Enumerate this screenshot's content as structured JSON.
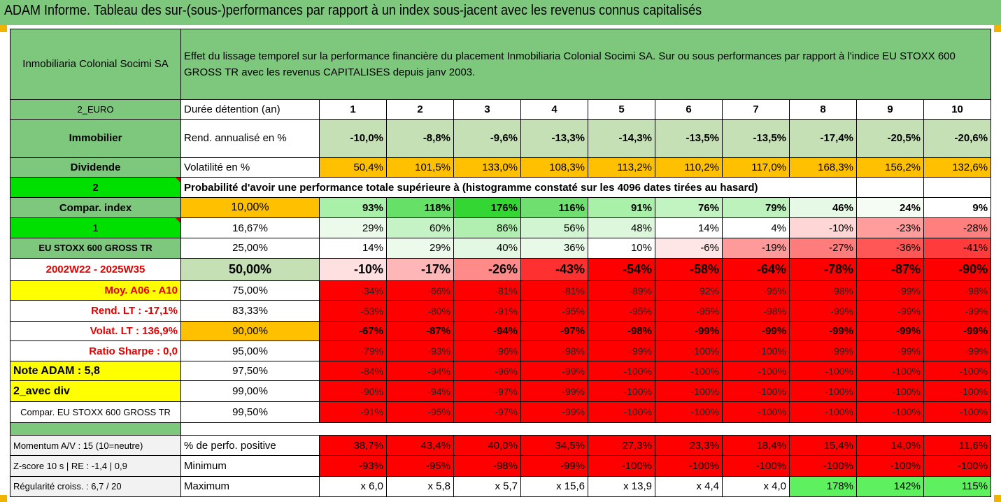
{
  "title": "ADAM Informe. Tableau des sur-(sous-)performances par rapport à un index sous-jacent avec les revenus connus capitalisés",
  "header": {
    "name": "Inmobiliaria Colonial Socimi SA",
    "description": "Effet du lissage temporel sur la performance financière du placement Inmobiliaria Colonial Socimi SA. Sur ou sous performances par rapport à l'indice EU STOXX 600 GROSS TR avec les revenus CAPITALISES depuis janv 2003."
  },
  "years_row": {
    "left": "2_EURO",
    "label": "Durée détention (an)",
    "cols": [
      "1",
      "2",
      "3",
      "4",
      "5",
      "6",
      "7",
      "8",
      "9",
      "10"
    ]
  },
  "rend_row": {
    "left": "Immobilier",
    "label": "Rend. annualisé en %",
    "cols": [
      "-10,0%",
      "-8,8%",
      "-9,6%",
      "-13,3%",
      "-14,3%",
      "-13,5%",
      "-13,5%",
      "-17,4%",
      "-20,5%",
      "-20,6%"
    ]
  },
  "vol_row": {
    "left": "Dividende",
    "label": "Volatilité en %",
    "cols": [
      "50,4%",
      "101,5%",
      "133,0%",
      "108,3%",
      "113,2%",
      "110,2%",
      "117,0%",
      "168,3%",
      "156,2%",
      "132,6%"
    ]
  },
  "prob_row": {
    "left": "2",
    "text": "Probabilité d'avoir une performance totale supérieure à (histogramme constaté sur les 4096 dates tirées au hasard)"
  },
  "quantile_rows": [
    {
      "left": "Compar. index",
      "pct": "10,00%",
      "cols": [
        "93%",
        "118%",
        "176%",
        "116%",
        "91%",
        "76%",
        "79%",
        "46%",
        "24%",
        "9%"
      ]
    },
    {
      "left": "1",
      "pct": "16,67%",
      "cols": [
        "29%",
        "60%",
        "86%",
        "56%",
        "48%",
        "14%",
        "4%",
        "-10%",
        "-23%",
        "-28%"
      ]
    },
    {
      "left": "EU STOXX 600 GROSS TR",
      "pct": "25,00%",
      "cols": [
        "14%",
        "29%",
        "40%",
        "36%",
        "10%",
        "-6%",
        "-19%",
        "-27%",
        "-36%",
        "-41%"
      ]
    },
    {
      "left": "2002W22 - 2025W35",
      "pct": "50,00%",
      "cols": [
        "-10%",
        "-17%",
        "-26%",
        "-43%",
        "-54%",
        "-58%",
        "-64%",
        "-78%",
        "-87%",
        "-90%"
      ]
    },
    {
      "left": "Moy. A06 - A10",
      "pct": "75,00%",
      "cols": [
        "-34%",
        "-66%",
        "-81%",
        "-81%",
        "-89%",
        "-92%",
        "-95%",
        "-98%",
        "-99%",
        "-98%"
      ]
    },
    {
      "left": "Rend. LT :   -17,1%",
      "pct": "83,33%",
      "cols": [
        "-53%",
        "-80%",
        "-91%",
        "-95%",
        "-95%",
        "-95%",
        "-98%",
        "-99%",
        "-99%",
        "-99%"
      ]
    },
    {
      "left": "Volat. LT :   136,9%",
      "pct": "90,00%",
      "cols": [
        "-67%",
        "-87%",
        "-94%",
        "-97%",
        "-98%",
        "-99%",
        "-99%",
        "-99%",
        "-99%",
        "-99%"
      ]
    },
    {
      "left": "Ratio Sharpe :   0,0",
      "pct": "95,00%",
      "cols": [
        "-79%",
        "-93%",
        "-96%",
        "-98%",
        "-99%",
        "-100%",
        "-100%",
        "-99%",
        "-99%",
        "-99%"
      ]
    },
    {
      "left": "Note ADAM : 5,8",
      "pct": "97,50%",
      "cols": [
        "-84%",
        "-94%",
        "-96%",
        "-99%",
        "-100%",
        "-100%",
        "-100%",
        "-100%",
        "-100%",
        "-100%"
      ]
    },
    {
      "left": "2_avec div",
      "pct": "99,00%",
      "cols": [
        "-90%",
        "-94%",
        "-97%",
        "-99%",
        "-100%",
        "-100%",
        "-100%",
        "-100%",
        "-100%",
        "-100%"
      ]
    },
    {
      "left": "Compar. EU STOXX 600 GROSS TR",
      "pct": "99,50%",
      "cols": [
        "-91%",
        "-95%",
        "-97%",
        "-99%",
        "-100%",
        "-100%",
        "-100%",
        "-100%",
        "-100%",
        "-100%"
      ]
    }
  ],
  "stats_rows": [
    {
      "left": "Momentum A/V : 15 (10=neutre)",
      "label": "% de perfo. positive",
      "cols": [
        "38,7%",
        "43,4%",
        "40,0%",
        "34,5%",
        "27,3%",
        "23,3%",
        "18,4%",
        "15,4%",
        "14,0%",
        "11,6%"
      ]
    },
    {
      "left": "Z-score 10 s  |  RE : -1,4  |  0,9",
      "label": "Minimum",
      "cols": [
        "-93%",
        "-95%",
        "-98%",
        "-99%",
        "-100%",
        "-100%",
        "-100%",
        "-100%",
        "-100%",
        "-100%"
      ]
    },
    {
      "left": "Régularité croiss. : 6,7 / 20",
      "label": "Maximum",
      "cols": [
        "x 6,0",
        "x 5,8",
        "x 5,7",
        "x 15,6",
        "x 13,9",
        "x 4,4",
        "x 4,0",
        "178%",
        "142%",
        "115%"
      ]
    }
  ],
  "colors": {
    "header_green": "#7dc87d",
    "orange": "#ffc000",
    "yellow": "#ffff00",
    "bright_green": "#00e000",
    "red": "#ff0000"
  },
  "cell_colors": {
    "rend": [
      "#c5e0b4",
      "#c5e0b4",
      "#c5e0b4",
      "#c5e0b4",
      "#c5e0b4",
      "#c5e0b4",
      "#c5e0b4",
      "#c5e0b4",
      "#c5e0b4",
      "#c5e0b4"
    ],
    "quantile": [
      [
        "#a9f0a9",
        "#66e066",
        "#33d633",
        "#6fe06f",
        "#a9f0a9",
        "#c2f4c2",
        "#bdf2bd",
        "#e6f9e6",
        "#f4fcf4",
        "#ffffff"
      ],
      [
        "#ecfaec",
        "#c6f3c6",
        "#b0efb0",
        "#d0f5d0",
        "#dcf7dc",
        "#ffffff",
        "#ffffff",
        "#ffd6d6",
        "#ff9c9c",
        "#ff7e7e"
      ],
      [
        "#ffffff",
        "#ecfaec",
        "#e3f8e3",
        "#e8f9e8",
        "#ffffff",
        "#ffe6e6",
        "#ff9a9a",
        "#ff7c7c",
        "#ff5656",
        "#ff3b3b"
      ],
      [
        "#ffe0e0",
        "#ffb6b6",
        "#ff8a8a",
        "#ff3030",
        "#ff0000",
        "#ff0000",
        "#ff0000",
        "#ff0000",
        "#ff0000",
        "#ff0000"
      ]
    ],
    "stats": [
      [
        "#ff0000",
        "#ff0000",
        "#ff0000",
        "#ff0000",
        "#ff0000",
        "#ff0000",
        "#ff0000",
        "#ff0000",
        "#ff0000",
        "#ff0000"
      ],
      [
        "#ff0000",
        "#ff0000",
        "#ff0000",
        "#ff0000",
        "#ff0000",
        "#ff0000",
        "#ff0000",
        "#ff0000",
        "#ff0000",
        "#ff0000"
      ],
      [
        "#ffffff",
        "#ffffff",
        "#ffffff",
        "#ffffff",
        "#ffffff",
        "#ffffff",
        "#ffffff",
        "#5ef05e",
        "#5ef05e",
        "#5ef05e"
      ]
    ]
  }
}
